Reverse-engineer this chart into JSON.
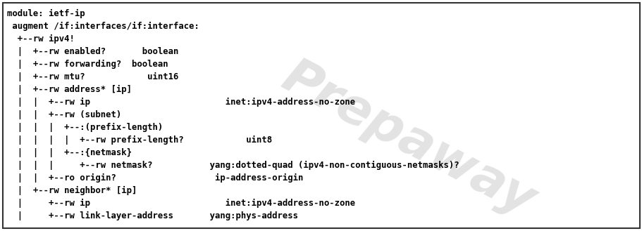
{
  "lines": [
    "module: ietf-ip",
    " augment /if:interfaces/if:interface:",
    "  +--rw ipv4!",
    "  |  +--rw enabled?       boolean",
    "  |  +--rw forwarding?  boolean",
    "  |  +--rw mtu?            uint16",
    "  |  +--rw address* [ip]",
    "  |  |  +--rw ip                          inet:ipv4-address-no-zone",
    "  |  |  +--rw (subnet)",
    "  |  |  |  +--:(prefix-length)",
    "  |  |  |  |  +--rw prefix-length?            uint8",
    "  |  |  |  +--:{netmask}",
    "  |  |  |     +--rw netmask?           yang:dotted-quad (ipv4-non-contiguous-netmasks)?",
    "  |  |  +--ro origin?                   ip-address-origin",
    "  |  +--rw neighbor* [ip]",
    "  |     +--rw ip                          inet:ipv4-address-no-zone",
    "  |     +--rw link-layer-address       yang:phys-address"
  ],
  "bg_color": "#ffffff",
  "border_color": "#333333",
  "text_color": "#000000",
  "watermark_text": "Prepaway",
  "watermark_color": "#d0d0d0",
  "font_size": 8.8,
  "fig_width": 9.12,
  "fig_height": 3.29,
  "dpi": 100
}
